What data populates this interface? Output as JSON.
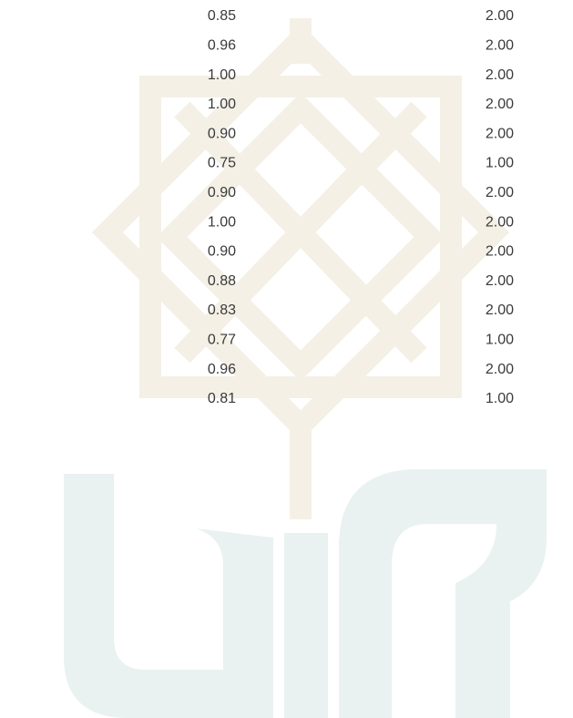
{
  "table": {
    "rows": [
      [
        "0.85",
        "2.00"
      ],
      [
        "0.96",
        "2.00"
      ],
      [
        "1.00",
        "2.00"
      ],
      [
        "1.00",
        "2.00"
      ],
      [
        "0.90",
        "2.00"
      ],
      [
        "0.75",
        "1.00"
      ],
      [
        "0.90",
        "2.00"
      ],
      [
        "1.00",
        "2.00"
      ],
      [
        "0.90",
        "2.00"
      ],
      [
        "0.88",
        "2.00"
      ],
      [
        "0.83",
        "2.00"
      ],
      [
        "0.77",
        "1.00"
      ],
      [
        "0.96",
        "2.00"
      ],
      [
        "0.81",
        "1.00"
      ]
    ]
  }
}
